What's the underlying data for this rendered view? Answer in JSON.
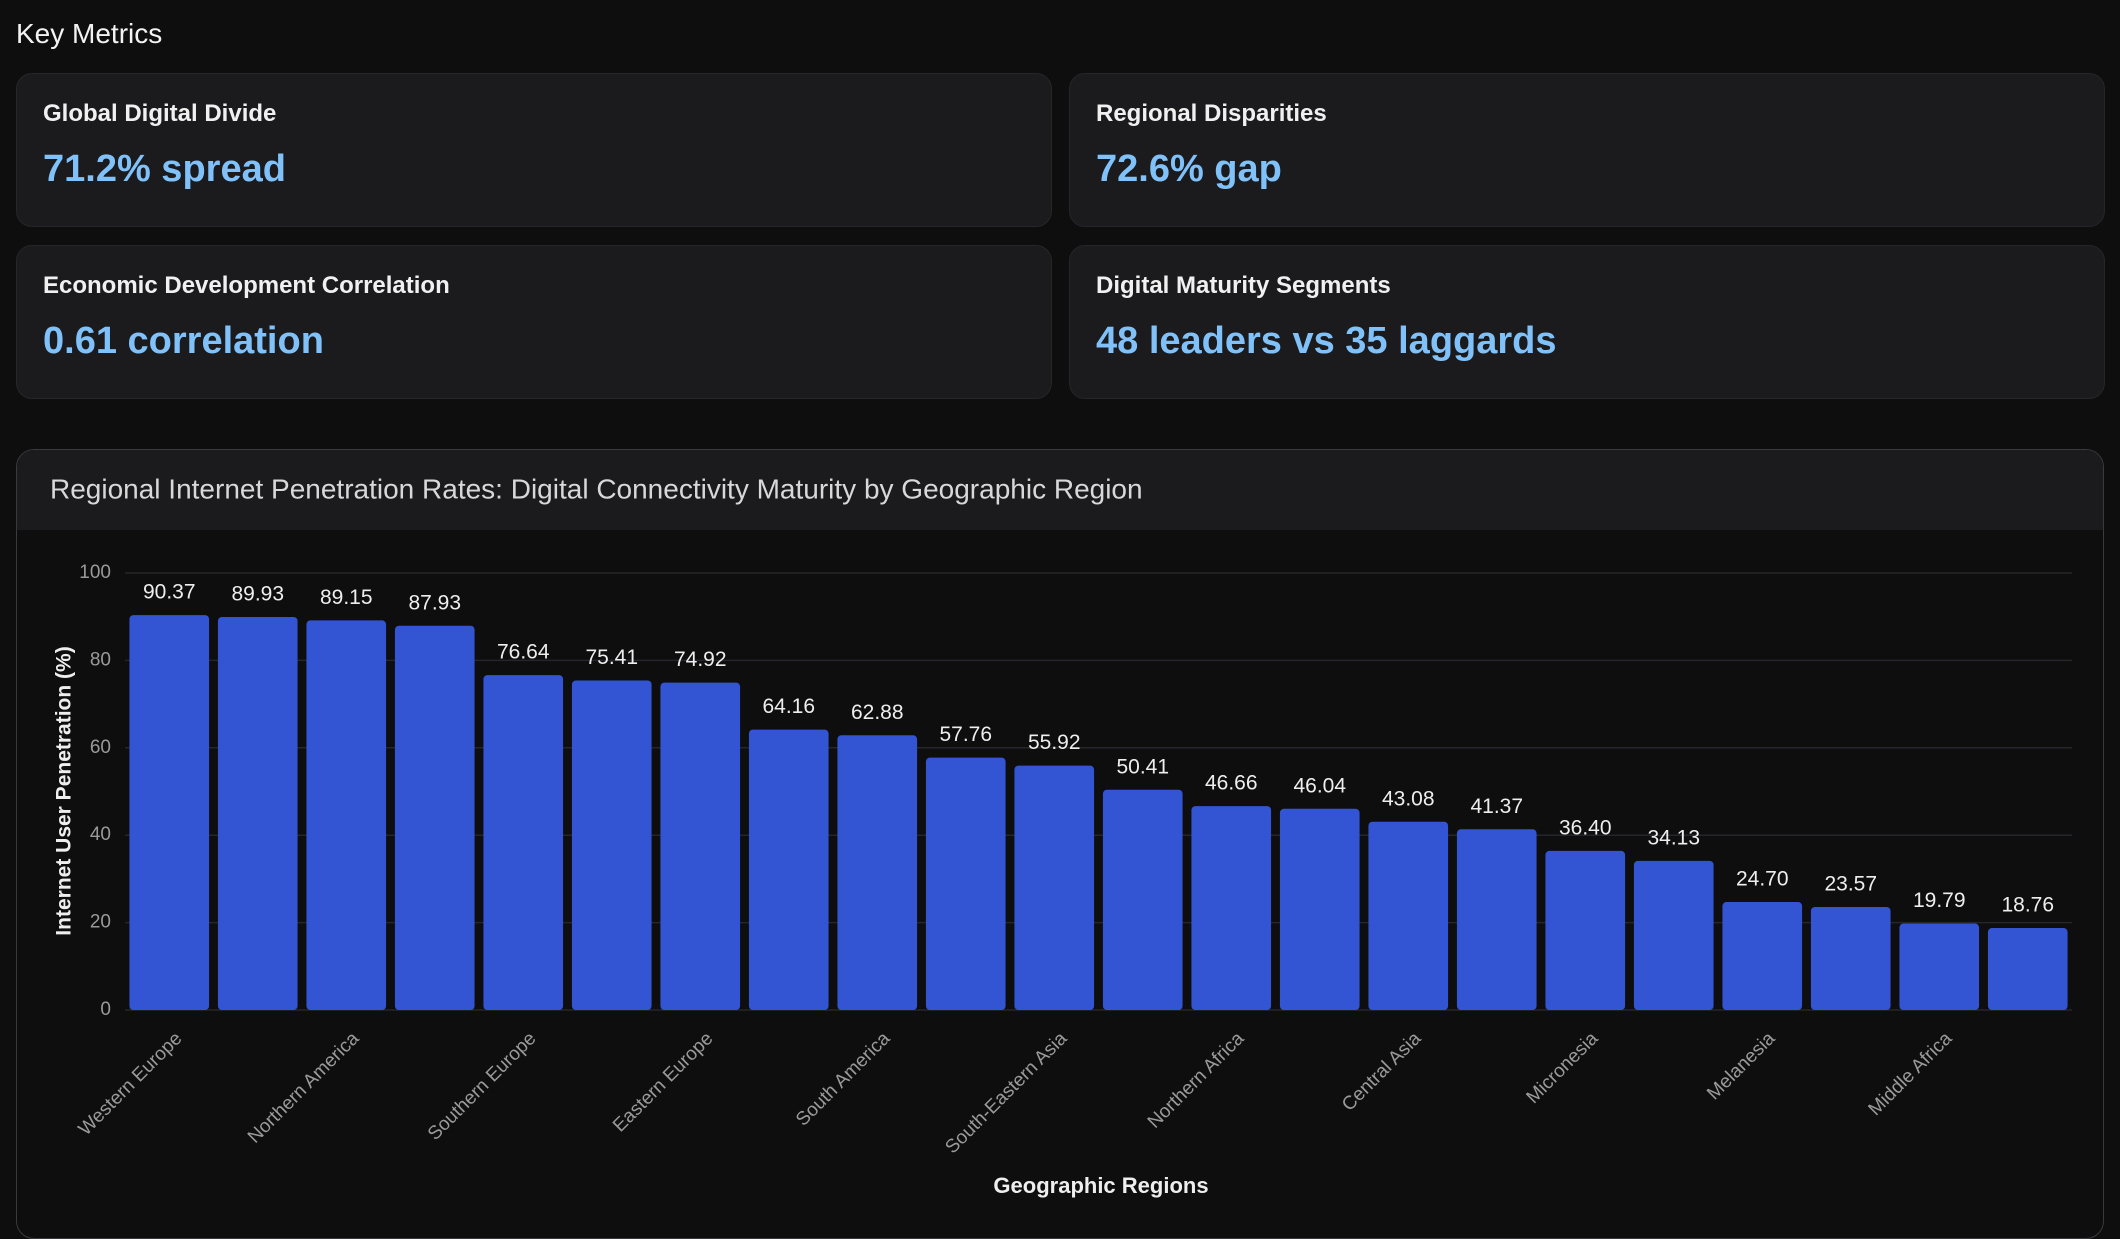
{
  "header": {
    "title": "Key Metrics"
  },
  "cards": [
    {
      "title": "Global Digital Divide",
      "value": "71.2% spread"
    },
    {
      "title": "Regional Disparities",
      "value": "72.6% gap"
    },
    {
      "title": "Economic Development Correlation",
      "value": "0.61 correlation"
    },
    {
      "title": "Digital Maturity Segments",
      "value": "48 leaders vs 35 laggards"
    }
  ],
  "chart_data": {
    "type": "bar",
    "title": "Regional Internet Penetration Rates: Digital Connectivity Maturity by Geographic Region",
    "x_label": "Geographic Regions",
    "y_label": "Internet User Penetration (%)",
    "categories": [
      "Western Europe",
      null,
      "Northern America",
      null,
      "Southern Europe",
      null,
      "Eastern Europe",
      null,
      "South America",
      null,
      "South-Eastern Asia",
      null,
      "Northern Africa",
      null,
      "Central Asia",
      null,
      "Micronesia",
      null,
      "Melanesia",
      null,
      "Middle Africa",
      null
    ],
    "values": [
      90.37,
      89.93,
      89.15,
      87.93,
      76.64,
      75.41,
      74.92,
      64.16,
      62.88,
      57.76,
      55.92,
      50.41,
      46.66,
      46.04,
      43.08,
      41.37,
      36.4,
      34.13,
      24.7,
      23.57,
      19.79,
      18.76
    ],
    "value_labels": [
      "90.37",
      "89.93",
      "89.15",
      "87.93",
      "76.64",
      "75.41",
      "74.92",
      "64.16",
      "62.88",
      "57.76",
      "55.92",
      "50.41",
      "46.66",
      "46.04",
      "43.08",
      "41.37",
      "36.40",
      "34.13",
      "24.70",
      "23.57",
      "19.79",
      "18.76"
    ],
    "color": "#3355d4",
    "ylim": [
      0,
      100
    ],
    "yticks": [
      0,
      20,
      40,
      60,
      80,
      100
    ],
    "grid": true
  }
}
